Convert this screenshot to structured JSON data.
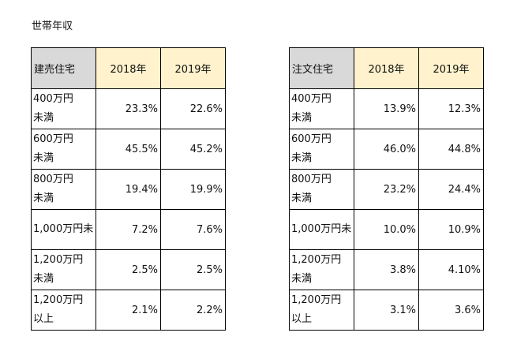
{
  "title": "世帯年収",
  "tables": [
    {
      "type": "建売住宅",
      "years": [
        "2018年",
        "2019年"
      ],
      "rows": [
        {
          "label_line1": "400万円",
          "label_line2": "未満",
          "v2018": "23.3%",
          "v2019": "22.6%"
        },
        {
          "label_line1": "600万円",
          "label_line2": "未満",
          "v2018": "45.5%",
          "v2019": "45.2%"
        },
        {
          "label_line1": "800万円",
          "label_line2": "未満",
          "v2018": "19.4%",
          "v2019": "19.9%"
        },
        {
          "label_line1": "1,000万円未",
          "label_line2": "",
          "v2018": "7.2%",
          "v2019": "7.6%"
        },
        {
          "label_line1": "1,200万円",
          "label_line2": "未満",
          "v2018": "2.5%",
          "v2019": "2.5%"
        },
        {
          "label_line1": "1,200万円",
          "label_line2": "以上",
          "v2018": "2.1%",
          "v2019": "2.2%"
        }
      ]
    },
    {
      "type": "注文住宅",
      "years": [
        "2018年",
        "2019年"
      ],
      "rows": [
        {
          "label_line1": "400万円",
          "label_line2": "未満",
          "v2018": "13.9%",
          "v2019": "12.3%"
        },
        {
          "label_line1": "600万円",
          "label_line2": "未満",
          "v2018": "46.0%",
          "v2019": "44.8%"
        },
        {
          "label_line1": "800万円",
          "label_line2": "未満",
          "v2018": "23.2%",
          "v2019": "24.4%"
        },
        {
          "label_line1": "1,000万円未",
          "label_line2": "",
          "v2018": "10.0%",
          "v2019": "10.9%"
        },
        {
          "label_line1": "1,200万円",
          "label_line2": "未満",
          "v2018": "3.8%",
          "v2019": "4.10%"
        },
        {
          "label_line1": "1,200万円",
          "label_line2": "以上",
          "v2018": "3.1%",
          "v2019": "3.6%"
        }
      ]
    }
  ]
}
